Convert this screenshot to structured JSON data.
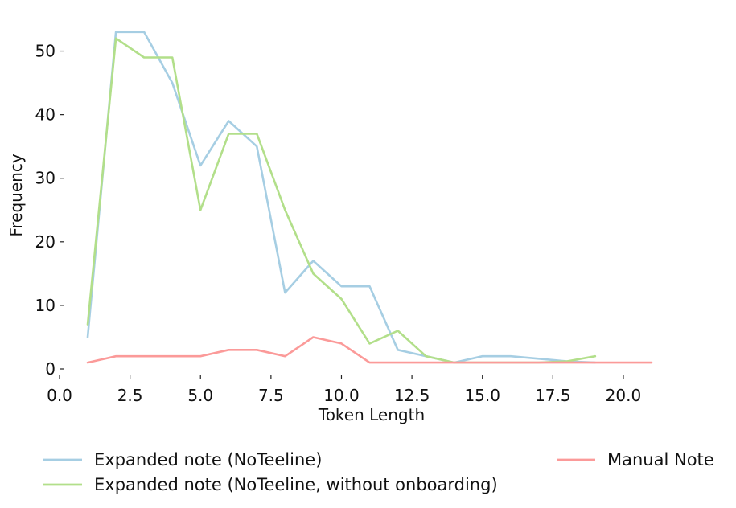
{
  "chart_data": {
    "type": "line",
    "title": "",
    "xlabel": "Token Length",
    "ylabel": "Frequency",
    "xlim": [
      0,
      21
    ],
    "ylim": [
      0,
      55
    ],
    "xticks": [
      0.0,
      2.5,
      5.0,
      7.5,
      10.0,
      12.5,
      15.0,
      17.5,
      20.0
    ],
    "xtick_labels": [
      "0.0",
      "2.5",
      "5.0",
      "7.5",
      "10.0",
      "12.5",
      "15.0",
      "17.5",
      "20.0"
    ],
    "yticks": [
      0,
      10,
      20,
      30,
      40,
      50
    ],
    "ytick_labels": [
      "0",
      "10",
      "20",
      "30",
      "40",
      "50"
    ],
    "grid": false,
    "legend_position": "bottom",
    "series": [
      {
        "name": "Expanded note (NoTeeline)",
        "color": "#a6cee3",
        "x": [
          1,
          2,
          3,
          4,
          5,
          6,
          7,
          8,
          9,
          10,
          11,
          12,
          13,
          14,
          15,
          16,
          17,
          18,
          19
        ],
        "y": [
          5,
          53,
          53,
          45,
          32,
          39,
          35,
          12,
          17,
          13,
          13,
          3,
          2,
          1,
          2,
          2,
          1.6,
          1.2,
          1
        ]
      },
      {
        "name": "Expanded note (NoTeeline, without onboarding)",
        "color": "#b2df8a",
        "x": [
          1,
          2,
          3,
          4,
          5,
          6,
          7,
          8,
          9,
          10,
          11,
          12,
          13,
          14,
          15,
          16,
          17,
          18,
          19
        ],
        "y": [
          7,
          52,
          49,
          49,
          25,
          37,
          37,
          25,
          15,
          11,
          4,
          6,
          2,
          1,
          1,
          1,
          1,
          1.2,
          2
        ]
      },
      {
        "name": "Manual Note",
        "color": "#fb9a99",
        "x": [
          1,
          2,
          3,
          4,
          5,
          6,
          7,
          8,
          9,
          10,
          11,
          12,
          13,
          14,
          15,
          16,
          17,
          18,
          19,
          20,
          21
        ],
        "y": [
          1,
          2,
          2,
          2,
          2,
          3,
          3,
          2,
          5,
          4,
          1,
          1,
          1,
          1,
          1,
          1,
          1,
          1,
          1,
          1,
          1
        ]
      }
    ]
  }
}
